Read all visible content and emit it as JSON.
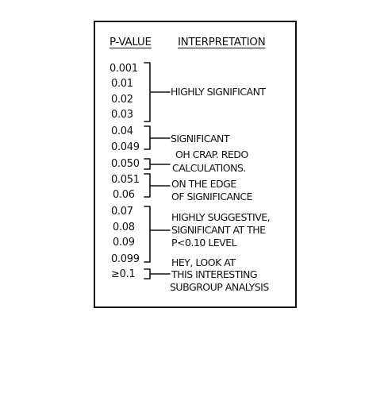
{
  "header": {
    "col1": "P-VALUE",
    "col2": "INTERPRETATION"
  },
  "p_values": [
    "0.001",
    "0.01",
    "0.02",
    "0.03",
    "0.04",
    "0.049",
    "0.050",
    "0.051",
    "0.06",
    "0.07",
    "0.08",
    "0.09",
    "0.099",
    "≥0.1"
  ],
  "interpretations": [
    {
      "lines": [
        "HIGHLY SIGNIFICANT"
      ]
    },
    {
      "lines": [
        "SIGNIFICANT"
      ]
    },
    {
      "lines": [
        "OH CRAP. REDO",
        "CALCULATIONS."
      ]
    },
    {
      "lines": [
        "ON THE EDGE",
        "OF SIGNIFICANCE"
      ]
    },
    {
      "lines": [
        "HIGHLY SUGGESTIVE,",
        "SIGNIFICANT AT THE",
        "P<0.10 LEVEL"
      ]
    },
    {
      "lines": [
        "HEY, LOOK AT",
        "THIS INTERESTING",
        "SUBGROUP ANALYSIS"
      ]
    }
  ]
}
